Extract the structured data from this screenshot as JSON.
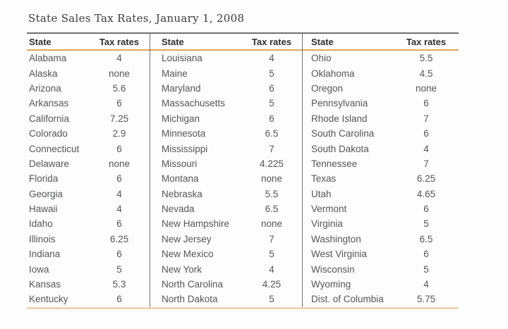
{
  "chart_data": {
    "type": "table",
    "title": "State Sales Tax Rates, January 1, 2008",
    "columns": [
      "State",
      "Tax rates"
    ],
    "layout": "three side-by-side column groups of 17 rows each, separated by vertical rules",
    "rows": [
      [
        "Alabama",
        "4"
      ],
      [
        "Alaska",
        "none"
      ],
      [
        "Arizona",
        "5.6"
      ],
      [
        "Arkansas",
        "6"
      ],
      [
        "California",
        "7.25"
      ],
      [
        "Colorado",
        "2.9"
      ],
      [
        "Connecticut",
        "6"
      ],
      [
        "Delaware",
        "none"
      ],
      [
        "Florida",
        "6"
      ],
      [
        "Georgia",
        "4"
      ],
      [
        "Hawaii",
        "4"
      ],
      [
        "Idaho",
        "6"
      ],
      [
        "Illinois",
        "6.25"
      ],
      [
        "Indiana",
        "6"
      ],
      [
        "Iowa",
        "5"
      ],
      [
        "Kansas",
        "5.3"
      ],
      [
        "Kentucky",
        "6"
      ],
      [
        "Louisiana",
        "4"
      ],
      [
        "Maine",
        "5"
      ],
      [
        "Maryland",
        "6"
      ],
      [
        "Massachusetts",
        "5"
      ],
      [
        "Michigan",
        "6"
      ],
      [
        "Minnesota",
        "6.5"
      ],
      [
        "Mississippi",
        "7"
      ],
      [
        "Missouri",
        "4.225"
      ],
      [
        "Montana",
        "none"
      ],
      [
        "Nebraska",
        "5.5"
      ],
      [
        "Nevada",
        "6.5"
      ],
      [
        "New Hampshire",
        "none"
      ],
      [
        "New Jersey",
        "7"
      ],
      [
        "New Mexico",
        "5"
      ],
      [
        "New York",
        "4"
      ],
      [
        "North Carolina",
        "4.25"
      ],
      [
        "North Dakota",
        "5"
      ],
      [
        "Ohio",
        "5.5"
      ],
      [
        "Oklahoma",
        "4.5"
      ],
      [
        "Oregon",
        "none"
      ],
      [
        "Pennsylvania",
        "6"
      ],
      [
        "Rhode Island",
        "7"
      ],
      [
        "South Carolina",
        "6"
      ],
      [
        "South Dakota",
        "4"
      ],
      [
        "Tennessee",
        "7"
      ],
      [
        "Texas",
        "6.25"
      ],
      [
        "Utah",
        "4.65"
      ],
      [
        "Vermont",
        "6"
      ],
      [
        "Virginia",
        "5"
      ],
      [
        "Washington",
        "6.5"
      ],
      [
        "West Virginia",
        "6"
      ],
      [
        "Wisconsin",
        "5"
      ],
      [
        "Wyoming",
        "4"
      ],
      [
        "Dist. of Columbia",
        "5.75"
      ]
    ]
  },
  "colors": {
    "top_rule": "#707174",
    "divider": "#707174",
    "header_rule": "#d9a95a",
    "bottom_rule": "#eed6b5",
    "header_text": "#2e2f32",
    "body_text": "#55565a",
    "title_text": "#3b3b3d",
    "background": "#fdfdfd"
  }
}
